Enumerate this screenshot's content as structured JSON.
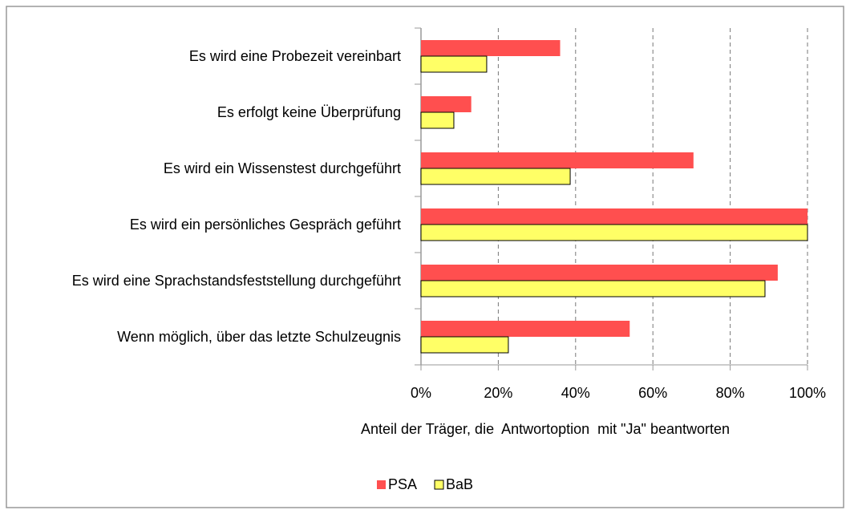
{
  "chart_data": {
    "type": "hbar",
    "categories": [
      "Es wird eine Probezeit vereinbart",
      "Es erfolgt keine Überprüfung",
      "Es wird ein Wissenstest durchgeführt",
      "Es wird ein persönliches Gespräch geführt",
      "Es wird eine Sprachstandsfeststellung durchgeführt",
      "Wenn möglich, über das letzte Schulzeugnis"
    ],
    "series": [
      {
        "name": "PSA",
        "color": "#ff4f4f",
        "values": [
          36,
          13,
          70.5,
          100,
          92.3,
          54
        ]
      },
      {
        "name": "BaB",
        "color": "#ffff66",
        "values": [
          17,
          8.5,
          38.6,
          100,
          89,
          22.6
        ]
      }
    ],
    "xlim": [
      0,
      100
    ],
    "xticks": [
      {
        "value": 0,
        "label": "0%"
      },
      {
        "value": 20,
        "label": "20%"
      },
      {
        "value": 40,
        "label": "40%"
      },
      {
        "value": 60,
        "label": "60%"
      },
      {
        "value": 80,
        "label": "80%"
      },
      {
        "value": 100,
        "label": "100%"
      }
    ],
    "x_label": "Anteil der Träger, die  Antwortoption  mit \"Ja\" beantworten",
    "grid": true,
    "legend": "bottom"
  }
}
